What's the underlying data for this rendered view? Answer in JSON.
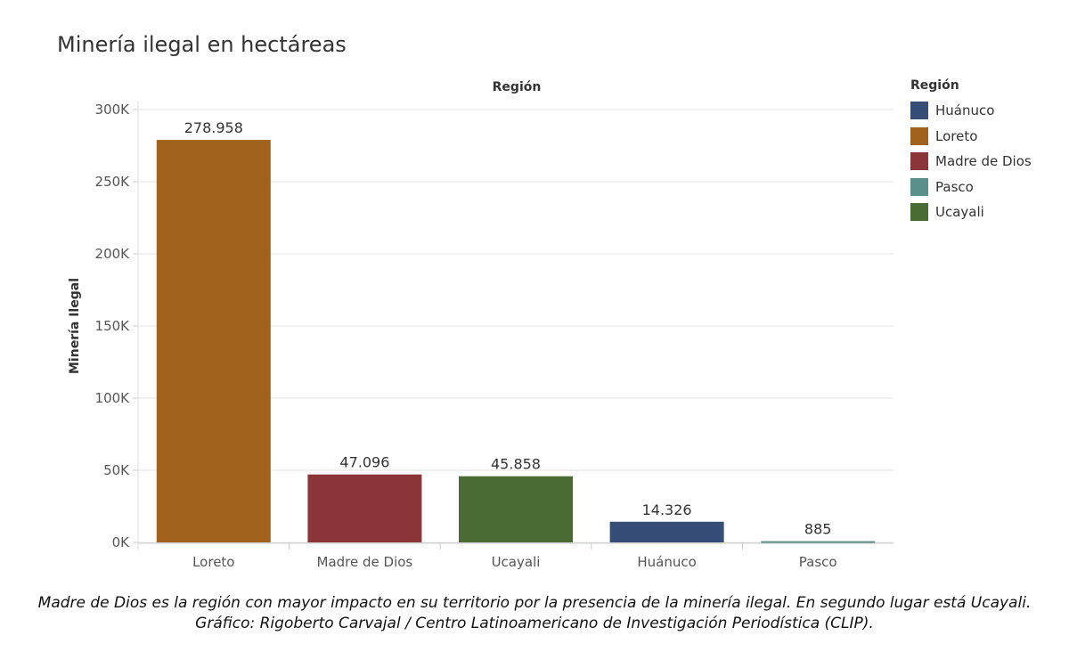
{
  "chart_data": {
    "type": "bar",
    "title": "Minería ilegal en hectáreas",
    "xlabel": "Región",
    "ylabel": "Minería Ilegal",
    "ylim": [
      0,
      300000
    ],
    "yticks": [
      0,
      50000,
      100000,
      150000,
      200000,
      250000,
      300000
    ],
    "ytick_labels": [
      "0K",
      "50K",
      "100K",
      "150K",
      "200K",
      "250K",
      "300K"
    ],
    "categories": [
      "Loreto",
      "Madre de Dios",
      "Ucayali",
      "Huánuco",
      "Pasco"
    ],
    "values": [
      278958,
      47096,
      45858,
      14326,
      885
    ],
    "data_labels": [
      "278.958",
      "47.096",
      "45.858",
      "14.326",
      "885"
    ],
    "colors": [
      "#a0621c",
      "#8b3538",
      "#4a6b34",
      "#364e77",
      "#5b8f8c"
    ],
    "grid": true,
    "legend": {
      "title": "Región",
      "position": "right",
      "entries": [
        "Huánuco",
        "Loreto",
        "Madre de Dios",
        "Pasco",
        "Ucayali"
      ],
      "colors": [
        "#364e77",
        "#a0621c",
        "#8b3538",
        "#5b8f8c",
        "#4a6b34"
      ]
    }
  },
  "caption": "Madre de Dios es la región con mayor impacto en su territorio por la presencia de la minería ilegal. En segundo lugar está Ucayali. Gráfico: Rigoberto Carvajal / Centro Latinoamericano de Investigación Periodística (CLIP)."
}
